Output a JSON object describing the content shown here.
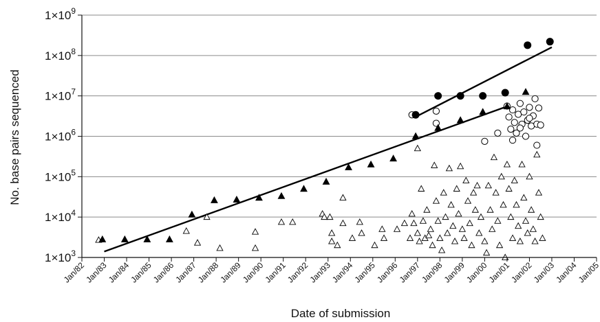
{
  "chart_data": {
    "type": "scatter",
    "title": "",
    "xlabel": "Date of submission",
    "ylabel": "No. base pairs sequenced",
    "yscale": "log",
    "grid": "horizontal",
    "legend": "none",
    "xlim": [
      "1982-01",
      "2005-01"
    ],
    "ylim": [
      1000,
      1000000000
    ],
    "x_ticks": [
      {
        "label": "Jan/82",
        "x": "1982-01"
      },
      {
        "label": "Jan/83",
        "x": "1983-01"
      },
      {
        "label": "Jan/84",
        "x": "1984-01"
      },
      {
        "label": "Jan/85",
        "x": "1985-01"
      },
      {
        "label": "Jan/86",
        "x": "1986-01"
      },
      {
        "label": "Jan/87",
        "x": "1987-01"
      },
      {
        "label": "Jan/88",
        "x": "1988-01"
      },
      {
        "label": "Jan/89",
        "x": "1989-01"
      },
      {
        "label": "Jan/90",
        "x": "1990-01"
      },
      {
        "label": "Jan/91",
        "x": "1991-01"
      },
      {
        "label": "Jan/92",
        "x": "1992-01"
      },
      {
        "label": "Jan/93",
        "x": "1993-01"
      },
      {
        "label": "Jan/94",
        "x": "1994-01"
      },
      {
        "label": "Jan/95",
        "x": "1995-01"
      },
      {
        "label": "Jan/96",
        "x": "1996-01"
      },
      {
        "label": "Jan/97",
        "x": "1997-01"
      },
      {
        "label": "Jan/98",
        "x": "1998-01"
      },
      {
        "label": "Jan/99",
        "x": "1999-01"
      },
      {
        "label": "Jan/00",
        "x": "2000-01"
      },
      {
        "label": "Jan/01",
        "x": "2001-01"
      },
      {
        "label": "Jan/02",
        "x": "2002-01"
      },
      {
        "label": "Jan/03",
        "x": "2003-01"
      },
      {
        "label": "Jan/04",
        "x": "2004-01"
      },
      {
        "label": "Jan/05",
        "x": "2005-01"
      }
    ],
    "y_ticks": [
      {
        "base": "1×10",
        "exp": "3",
        "y": 1000
      },
      {
        "base": "1×10",
        "exp": "4",
        "y": 10000
      },
      {
        "base": "1×10",
        "exp": "5",
        "y": 100000
      },
      {
        "base": "1×10",
        "exp": "6",
        "y": 1000000
      },
      {
        "base": "1×10",
        "exp": "7",
        "y": 10000000
      },
      {
        "base": "1×10",
        "exp": "8",
        "y": 100000000
      },
      {
        "base": "1×10",
        "exp": "9",
        "y": 1000000000
      }
    ],
    "series": [
      {
        "marker": "filled-triangle",
        "points": [
          [
            "1982-12",
            2800
          ],
          [
            "1983-12",
            2800
          ],
          [
            "1984-12",
            2800
          ],
          [
            "1985-12",
            2800
          ],
          [
            "1986-12",
            11500
          ],
          [
            "1987-12",
            26000
          ],
          [
            "1988-12",
            27000
          ],
          [
            "1989-12",
            30000
          ],
          [
            "1990-12",
            33000
          ],
          [
            "1991-12",
            50000
          ],
          [
            "1992-12",
            75000
          ],
          [
            "1993-12",
            170000
          ],
          [
            "1994-12",
            200000
          ],
          [
            "1995-12",
            280000
          ],
          [
            "1996-12",
            1000000
          ],
          [
            "1997-12",
            1600000
          ],
          [
            "1998-12",
            2500000
          ],
          [
            "1999-12",
            4000000
          ],
          [
            "2001-01",
            5500000
          ],
          [
            "2001-11",
            12500000
          ]
        ]
      },
      {
        "marker": "filled-circle",
        "points": [
          [
            "1996-12",
            3400000
          ],
          [
            "1997-12",
            10000000
          ],
          [
            "1998-12",
            10000000
          ],
          [
            "1999-12",
            10000000
          ],
          [
            "2000-12",
            12000000
          ],
          [
            "2001-12",
            180000000
          ],
          [
            "2002-12",
            220000000
          ]
        ]
      },
      {
        "marker": "open-circle",
        "points": [
          [
            "1996-10",
            3400000
          ],
          [
            "1997-11",
            4200000
          ],
          [
            "1997-11",
            2100000
          ],
          [
            "2000-01",
            750000
          ],
          [
            "2000-08",
            1200000
          ],
          [
            "2001-01",
            5600000
          ],
          [
            "2001-02",
            3000000
          ],
          [
            "2001-03",
            1500000
          ],
          [
            "2001-04",
            4500000
          ],
          [
            "2001-05",
            2200000
          ],
          [
            "2001-06",
            1200000
          ],
          [
            "2001-07",
            3500000
          ],
          [
            "2001-08",
            6500000
          ],
          [
            "2001-09",
            2000000
          ],
          [
            "2001-10",
            4000000
          ],
          [
            "2001-11",
            1000000
          ],
          [
            "2001-12",
            2500000
          ],
          [
            "2002-01",
            5200000
          ],
          [
            "2002-02",
            1800000
          ],
          [
            "2002-03",
            3200000
          ],
          [
            "2002-04",
            8500000
          ],
          [
            "2002-05",
            2000000
          ],
          [
            "2002-05",
            600000
          ],
          [
            "2002-06",
            5000000
          ],
          [
            "2002-07",
            1900000
          ],
          [
            "2001-04",
            800000
          ],
          [
            "2001-08",
            1600000
          ],
          [
            "2002-01",
            2800000
          ]
        ]
      },
      {
        "marker": "open-triangle",
        "points": [
          [
            "1982-10",
            2700
          ],
          [
            "1986-09",
            4500
          ],
          [
            "1987-03",
            2300
          ],
          [
            "1987-08",
            10000
          ],
          [
            "1988-03",
            1700
          ],
          [
            "1989-10",
            4300
          ],
          [
            "1989-10",
            1700
          ],
          [
            "1990-12",
            7500
          ],
          [
            "1991-06",
            7500
          ],
          [
            "1992-10",
            12000
          ],
          [
            "1992-11",
            10000
          ],
          [
            "1993-02",
            10000
          ],
          [
            "1993-03",
            4000
          ],
          [
            "1993-03",
            2500
          ],
          [
            "1993-06",
            2000
          ],
          [
            "1993-09",
            30000
          ],
          [
            "1993-09",
            7000
          ],
          [
            "1994-02",
            3000
          ],
          [
            "1994-06",
            7500
          ],
          [
            "1994-07",
            4000
          ],
          [
            "1995-02",
            2000
          ],
          [
            "1995-06",
            5000
          ],
          [
            "1995-07",
            3000
          ],
          [
            "1996-02",
            5000
          ],
          [
            "1996-06",
            7000
          ],
          [
            "1996-09",
            3000
          ],
          [
            "1996-10",
            12000
          ],
          [
            "1996-11",
            7000
          ],
          [
            "1997-01",
            500000
          ],
          [
            "1997-01",
            4000
          ],
          [
            "1997-02",
            2500
          ],
          [
            "1997-03",
            50000
          ],
          [
            "1997-04",
            8000
          ],
          [
            "1997-05",
            3000
          ],
          [
            "1997-06",
            15000
          ],
          [
            "1997-07",
            3500
          ],
          [
            "1997-08",
            5000
          ],
          [
            "1997-09",
            2000
          ],
          [
            "1997-10",
            190000
          ],
          [
            "1997-11",
            25000
          ],
          [
            "1997-12",
            8000
          ],
          [
            "1998-01",
            3000
          ],
          [
            "1998-02",
            1500
          ],
          [
            "1998-03",
            40000
          ],
          [
            "1998-04",
            10000
          ],
          [
            "1998-05",
            4000
          ],
          [
            "1998-06",
            160000
          ],
          [
            "1998-07",
            20000
          ],
          [
            "1998-08",
            6000
          ],
          [
            "1998-09",
            2500
          ],
          [
            "1998-10",
            50000
          ],
          [
            "1998-11",
            12000
          ],
          [
            "1998-12",
            180000
          ],
          [
            "1999-01",
            5000
          ],
          [
            "1999-02",
            3000
          ],
          [
            "1999-03",
            80000
          ],
          [
            "1999-04",
            25000
          ],
          [
            "1999-05",
            7000
          ],
          [
            "1999-06",
            2000
          ],
          [
            "1999-07",
            40000
          ],
          [
            "1999-08",
            15000
          ],
          [
            "1999-09",
            60000
          ],
          [
            "1999-10",
            4000
          ],
          [
            "1999-11",
            10000
          ],
          [
            "2000-01",
            2500
          ],
          [
            "2000-02",
            1300
          ],
          [
            "2000-03",
            60000
          ],
          [
            "2000-04",
            15000
          ],
          [
            "2000-05",
            5000
          ],
          [
            "2000-06",
            300000
          ],
          [
            "2000-07",
            40000
          ],
          [
            "2000-08",
            8000
          ],
          [
            "2000-09",
            2000
          ],
          [
            "2000-10",
            100000
          ],
          [
            "2000-11",
            20000
          ],
          [
            "2000-12",
            1000
          ],
          [
            "2001-01",
            200000
          ],
          [
            "2001-02",
            50000
          ],
          [
            "2001-03",
            10000
          ],
          [
            "2001-04",
            3000
          ],
          [
            "2001-05",
            80000
          ],
          [
            "2001-06",
            20000
          ],
          [
            "2001-07",
            6000
          ],
          [
            "2001-08",
            2500
          ],
          [
            "2001-09",
            200000
          ],
          [
            "2001-10",
            30000
          ],
          [
            "2001-11",
            8000
          ],
          [
            "2001-12",
            4000
          ],
          [
            "2002-01",
            100000
          ],
          [
            "2002-02",
            15000
          ],
          [
            "2002-03",
            5000
          ],
          [
            "2002-04",
            2500
          ],
          [
            "2002-05",
            350000
          ],
          [
            "2002-06",
            40000
          ],
          [
            "2002-07",
            10000
          ],
          [
            "2002-08",
            3000
          ]
        ]
      }
    ],
    "trend_lines": [
      {
        "from": [
          "1983-01",
          1400
        ],
        "to": [
          "2001-01",
          5500000
        ]
      },
      {
        "from": [
          "1997-01",
          3200000
        ],
        "to": [
          "2003-01",
          160000000
        ]
      }
    ]
  }
}
